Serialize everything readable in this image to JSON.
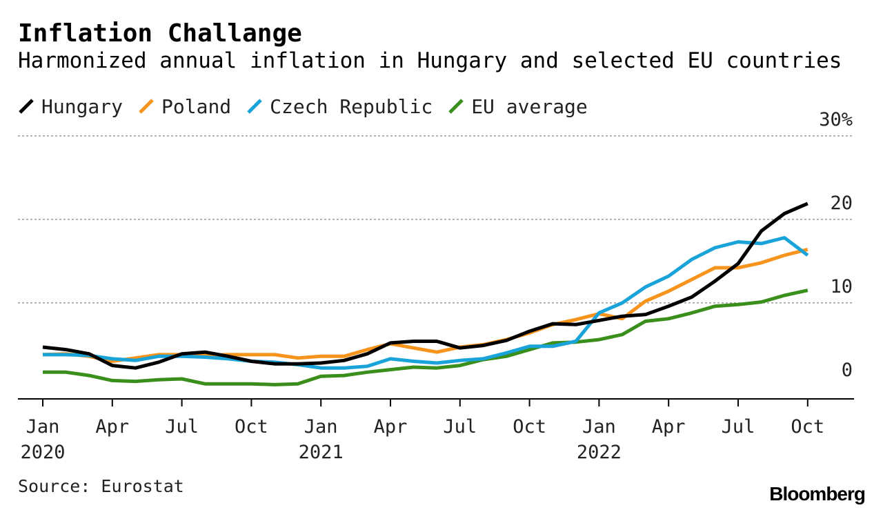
{
  "header": {
    "title": "Inflation Challange",
    "subtitle": "Harmonized annual inflation in Hungary and selected EU countries"
  },
  "footer": {
    "source": "Source: Eurostat",
    "brand": "Bloomberg"
  },
  "chart_data": {
    "type": "line",
    "title": "Inflation Challange",
    "subtitle": "Harmonized annual inflation in Hungary and selected EU countries",
    "xlabel": "",
    "ylabel": "",
    "ylim": [
      -1.5,
      30
    ],
    "y_ticks": [
      {
        "value": 30,
        "label": "30%"
      },
      {
        "value": 20,
        "label": "20"
      },
      {
        "value": 10,
        "label": "10"
      },
      {
        "value": 0,
        "label": "0"
      }
    ],
    "x_ticks": [
      {
        "index": 0,
        "label": "Jan",
        "year": "2020"
      },
      {
        "index": 3,
        "label": "Apr",
        "year": ""
      },
      {
        "index": 6,
        "label": "Jul",
        "year": ""
      },
      {
        "index": 9,
        "label": "Oct",
        "year": ""
      },
      {
        "index": 12,
        "label": "Jan",
        "year": "2021"
      },
      {
        "index": 15,
        "label": "Apr",
        "year": ""
      },
      {
        "index": 18,
        "label": "Jul",
        "year": ""
      },
      {
        "index": 21,
        "label": "Oct",
        "year": ""
      },
      {
        "index": 24,
        "label": "Jan",
        "year": "2022"
      },
      {
        "index": 27,
        "label": "Apr",
        "year": ""
      },
      {
        "index": 30,
        "label": "Jul",
        "year": ""
      },
      {
        "index": 33,
        "label": "Oct",
        "year": ""
      }
    ],
    "categories": [
      "Jan 2020",
      "Feb 2020",
      "Mar 2020",
      "Apr 2020",
      "May 2020",
      "Jun 2020",
      "Jul 2020",
      "Aug 2020",
      "Sep 2020",
      "Oct 2020",
      "Nov 2020",
      "Dec 2020",
      "Jan 2021",
      "Feb 2021",
      "Mar 2021",
      "Apr 2021",
      "May 2021",
      "Jun 2021",
      "Jul 2021",
      "Aug 2021",
      "Sep 2021",
      "Oct 2021",
      "Nov 2021",
      "Dec 2021",
      "Jan 2022",
      "Feb 2022",
      "Mar 2022",
      "Apr 2022",
      "May 2022",
      "Jun 2022",
      "Jul 2022",
      "Aug 2022",
      "Sep 2022",
      "Oct 2022"
    ],
    "legend_position": "top-left",
    "grid": true,
    "series": [
      {
        "name": "Hungary",
        "color": "#000000",
        "values": [
          4.7,
          4.4,
          3.9,
          2.5,
          2.2,
          2.9,
          3.9,
          4.1,
          3.6,
          3.0,
          2.7,
          2.7,
          2.8,
          3.1,
          3.9,
          5.2,
          5.4,
          5.4,
          4.6,
          4.9,
          5.5,
          6.6,
          7.5,
          7.4,
          7.9,
          8.4,
          8.6,
          9.6,
          10.7,
          12.6,
          14.7,
          18.6,
          20.7,
          21.9
        ]
      },
      {
        "name": "Poland",
        "color": "#f7941d",
        "values": [
          3.8,
          3.9,
          3.6,
          3.0,
          3.4,
          3.8,
          3.8,
          3.7,
          3.8,
          3.8,
          3.8,
          3.4,
          3.6,
          3.6,
          4.4,
          5.1,
          4.6,
          4.1,
          4.7,
          5.0,
          5.6,
          6.4,
          7.4,
          8.0,
          8.7,
          8.1,
          10.2,
          11.4,
          12.8,
          14.2,
          14.2,
          14.8,
          15.7,
          16.4
        ]
      },
      {
        "name": "Czech Republic",
        "color": "#1aa3d9",
        "values": [
          3.8,
          3.8,
          3.7,
          3.3,
          3.1,
          3.6,
          3.6,
          3.5,
          3.3,
          3.0,
          2.9,
          2.6,
          2.2,
          2.2,
          2.4,
          3.3,
          3.0,
          2.8,
          3.1,
          3.3,
          4.0,
          4.8,
          4.8,
          5.4,
          8.8,
          10.0,
          11.9,
          13.2,
          15.2,
          16.6,
          17.3,
          17.1,
          17.8,
          15.7
        ]
      },
      {
        "name": "EU average",
        "color": "#3a8e1b",
        "values": [
          1.7,
          1.7,
          1.3,
          0.7,
          0.6,
          0.8,
          0.9,
          0.3,
          0.3,
          0.3,
          0.2,
          0.3,
          1.2,
          1.3,
          1.7,
          2.0,
          2.3,
          2.2,
          2.5,
          3.2,
          3.6,
          4.4,
          5.2,
          5.3,
          5.6,
          6.2,
          7.8,
          8.1,
          8.8,
          9.6,
          9.8,
          10.1,
          10.9,
          11.5
        ]
      }
    ]
  }
}
